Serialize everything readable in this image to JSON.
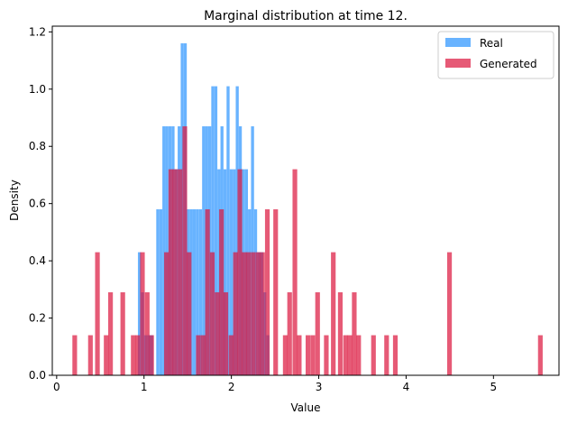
{
  "chart_data": {
    "type": "bar",
    "title": "Marginal distribution at time 12.",
    "xlabel": "Value",
    "ylabel": "Density",
    "xlim": [
      -0.05,
      5.75
    ],
    "ylim": [
      0,
      1.22
    ],
    "xticks": [
      0,
      1,
      2,
      3,
      4,
      5
    ],
    "yticks": [
      0.0,
      0.2,
      0.4,
      0.6,
      0.8,
      1.0,
      1.2
    ],
    "ytick_labels": [
      "0.0",
      "0.2",
      "0.4",
      "0.6",
      "0.8",
      "1.0",
      "1.2"
    ],
    "legend": {
      "position": "top-right",
      "entries": [
        "Real",
        "Generated"
      ]
    },
    "series": [
      {
        "name": "Real",
        "color": "#4da6ff",
        "opacity": 0.85,
        "bin_width": 0.0345,
        "bins": [
          [
            0.93,
            0.43
          ],
          [
            0.965,
            0.29
          ],
          [
            1.0,
            0.14
          ],
          [
            1.035,
            0.14
          ],
          [
            1.07,
            0.14
          ],
          [
            1.14,
            0.58
          ],
          [
            1.175,
            0.58
          ],
          [
            1.21,
            0.87
          ],
          [
            1.245,
            0.87
          ],
          [
            1.28,
            0.87
          ],
          [
            1.315,
            0.87
          ],
          [
            1.35,
            0.72
          ],
          [
            1.385,
            0.87
          ],
          [
            1.42,
            1.16
          ],
          [
            1.455,
            1.16
          ],
          [
            1.49,
            0.58
          ],
          [
            1.525,
            0.58
          ],
          [
            1.56,
            0.58
          ],
          [
            1.595,
            0.58
          ],
          [
            1.63,
            0.58
          ],
          [
            1.665,
            0.87
          ],
          [
            1.7,
            0.87
          ],
          [
            1.735,
            0.87
          ],
          [
            1.77,
            1.01
          ],
          [
            1.805,
            1.01
          ],
          [
            1.84,
            0.72
          ],
          [
            1.875,
            0.87
          ],
          [
            1.91,
            0.72
          ],
          [
            1.945,
            1.01
          ],
          [
            1.98,
            0.72
          ],
          [
            2.015,
            0.72
          ],
          [
            2.05,
            1.01
          ],
          [
            2.085,
            0.87
          ],
          [
            2.12,
            0.72
          ],
          [
            2.155,
            0.72
          ],
          [
            2.19,
            0.58
          ],
          [
            2.225,
            0.87
          ],
          [
            2.26,
            0.58
          ],
          [
            2.295,
            0.43
          ],
          [
            2.33,
            0.43
          ],
          [
            2.365,
            0.29
          ],
          [
            2.4,
            0.14
          ]
        ]
      },
      {
        "name": "Generated",
        "color": "#dc143c",
        "opacity": 0.7,
        "bin_width": 0.0535,
        "bins": [
          [
            0.18,
            0.14
          ],
          [
            0.36,
            0.14
          ],
          [
            0.44,
            0.43
          ],
          [
            0.54,
            0.14
          ],
          [
            0.59,
            0.29
          ],
          [
            0.73,
            0.29
          ],
          [
            0.85,
            0.14
          ],
          [
            0.9,
            0.14
          ],
          [
            0.955,
            0.43
          ],
          [
            1.01,
            0.29
          ],
          [
            1.06,
            0.14
          ],
          [
            1.23,
            0.43
          ],
          [
            1.28,
            0.72
          ],
          [
            1.33,
            0.72
          ],
          [
            1.385,
            0.72
          ],
          [
            1.44,
            0.87
          ],
          [
            1.49,
            0.43
          ],
          [
            1.595,
            0.14
          ],
          [
            1.65,
            0.14
          ],
          [
            1.7,
            0.58
          ],
          [
            1.755,
            0.43
          ],
          [
            1.81,
            0.29
          ],
          [
            1.86,
            0.58
          ],
          [
            1.91,
            0.29
          ],
          [
            1.97,
            0.14
          ],
          [
            2.02,
            0.43
          ],
          [
            2.07,
            0.72
          ],
          [
            2.12,
            0.43
          ],
          [
            2.17,
            0.43
          ],
          [
            2.225,
            0.43
          ],
          [
            2.28,
            0.43
          ],
          [
            2.33,
            0.43
          ],
          [
            2.385,
            0.58
          ],
          [
            2.48,
            0.58
          ],
          [
            2.59,
            0.14
          ],
          [
            2.64,
            0.29
          ],
          [
            2.7,
            0.72
          ],
          [
            2.75,
            0.14
          ],
          [
            2.85,
            0.14
          ],
          [
            2.905,
            0.14
          ],
          [
            2.96,
            0.29
          ],
          [
            3.06,
            0.14
          ],
          [
            3.14,
            0.43
          ],
          [
            3.22,
            0.29
          ],
          [
            3.28,
            0.14
          ],
          [
            3.33,
            0.14
          ],
          [
            3.38,
            0.29
          ],
          [
            3.43,
            0.14
          ],
          [
            3.6,
            0.14
          ],
          [
            3.75,
            0.14
          ],
          [
            3.85,
            0.14
          ],
          [
            4.47,
            0.43
          ],
          [
            5.51,
            0.14
          ]
        ]
      }
    ]
  }
}
